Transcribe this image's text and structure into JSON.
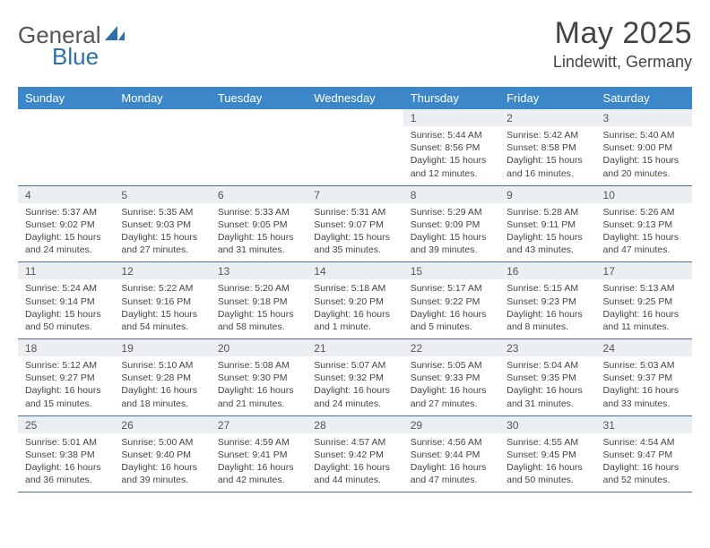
{
  "logo": {
    "text1": "General",
    "text2": "Blue"
  },
  "title": "May 2025",
  "location": "Lindewitt, Germany",
  "colors": {
    "header_bg": "#3b87c8",
    "header_fg": "#ffffff",
    "daynum_bg": "#eceff1",
    "rule": "#4a6f97",
    "text": "#444444",
    "logo_gray": "#555555",
    "logo_blue": "#2f6fa8"
  },
  "weekdays": [
    "Sunday",
    "Monday",
    "Tuesday",
    "Wednesday",
    "Thursday",
    "Friday",
    "Saturday"
  ],
  "weeks": [
    [
      null,
      null,
      null,
      null,
      {
        "n": "1",
        "sr": "5:44 AM",
        "ss": "8:56 PM",
        "dl": "15 hours and 12 minutes."
      },
      {
        "n": "2",
        "sr": "5:42 AM",
        "ss": "8:58 PM",
        "dl": "15 hours and 16 minutes."
      },
      {
        "n": "3",
        "sr": "5:40 AM",
        "ss": "9:00 PM",
        "dl": "15 hours and 20 minutes."
      }
    ],
    [
      {
        "n": "4",
        "sr": "5:37 AM",
        "ss": "9:02 PM",
        "dl": "15 hours and 24 minutes."
      },
      {
        "n": "5",
        "sr": "5:35 AM",
        "ss": "9:03 PM",
        "dl": "15 hours and 27 minutes."
      },
      {
        "n": "6",
        "sr": "5:33 AM",
        "ss": "9:05 PM",
        "dl": "15 hours and 31 minutes."
      },
      {
        "n": "7",
        "sr": "5:31 AM",
        "ss": "9:07 PM",
        "dl": "15 hours and 35 minutes."
      },
      {
        "n": "8",
        "sr": "5:29 AM",
        "ss": "9:09 PM",
        "dl": "15 hours and 39 minutes."
      },
      {
        "n": "9",
        "sr": "5:28 AM",
        "ss": "9:11 PM",
        "dl": "15 hours and 43 minutes."
      },
      {
        "n": "10",
        "sr": "5:26 AM",
        "ss": "9:13 PM",
        "dl": "15 hours and 47 minutes."
      }
    ],
    [
      {
        "n": "11",
        "sr": "5:24 AM",
        "ss": "9:14 PM",
        "dl": "15 hours and 50 minutes."
      },
      {
        "n": "12",
        "sr": "5:22 AM",
        "ss": "9:16 PM",
        "dl": "15 hours and 54 minutes."
      },
      {
        "n": "13",
        "sr": "5:20 AM",
        "ss": "9:18 PM",
        "dl": "15 hours and 58 minutes."
      },
      {
        "n": "14",
        "sr": "5:18 AM",
        "ss": "9:20 PM",
        "dl": "16 hours and 1 minute."
      },
      {
        "n": "15",
        "sr": "5:17 AM",
        "ss": "9:22 PM",
        "dl": "16 hours and 5 minutes."
      },
      {
        "n": "16",
        "sr": "5:15 AM",
        "ss": "9:23 PM",
        "dl": "16 hours and 8 minutes."
      },
      {
        "n": "17",
        "sr": "5:13 AM",
        "ss": "9:25 PM",
        "dl": "16 hours and 11 minutes."
      }
    ],
    [
      {
        "n": "18",
        "sr": "5:12 AM",
        "ss": "9:27 PM",
        "dl": "16 hours and 15 minutes."
      },
      {
        "n": "19",
        "sr": "5:10 AM",
        "ss": "9:28 PM",
        "dl": "16 hours and 18 minutes."
      },
      {
        "n": "20",
        "sr": "5:08 AM",
        "ss": "9:30 PM",
        "dl": "16 hours and 21 minutes."
      },
      {
        "n": "21",
        "sr": "5:07 AM",
        "ss": "9:32 PM",
        "dl": "16 hours and 24 minutes."
      },
      {
        "n": "22",
        "sr": "5:05 AM",
        "ss": "9:33 PM",
        "dl": "16 hours and 27 minutes."
      },
      {
        "n": "23",
        "sr": "5:04 AM",
        "ss": "9:35 PM",
        "dl": "16 hours and 31 minutes."
      },
      {
        "n": "24",
        "sr": "5:03 AM",
        "ss": "9:37 PM",
        "dl": "16 hours and 33 minutes."
      }
    ],
    [
      {
        "n": "25",
        "sr": "5:01 AM",
        "ss": "9:38 PM",
        "dl": "16 hours and 36 minutes."
      },
      {
        "n": "26",
        "sr": "5:00 AM",
        "ss": "9:40 PM",
        "dl": "16 hours and 39 minutes."
      },
      {
        "n": "27",
        "sr": "4:59 AM",
        "ss": "9:41 PM",
        "dl": "16 hours and 42 minutes."
      },
      {
        "n": "28",
        "sr": "4:57 AM",
        "ss": "9:42 PM",
        "dl": "16 hours and 44 minutes."
      },
      {
        "n": "29",
        "sr": "4:56 AM",
        "ss": "9:44 PM",
        "dl": "16 hours and 47 minutes."
      },
      {
        "n": "30",
        "sr": "4:55 AM",
        "ss": "9:45 PM",
        "dl": "16 hours and 50 minutes."
      },
      {
        "n": "31",
        "sr": "4:54 AM",
        "ss": "9:47 PM",
        "dl": "16 hours and 52 minutes."
      }
    ]
  ],
  "labels": {
    "sunrise": "Sunrise: ",
    "sunset": "Sunset: ",
    "daylight": "Daylight: "
  }
}
